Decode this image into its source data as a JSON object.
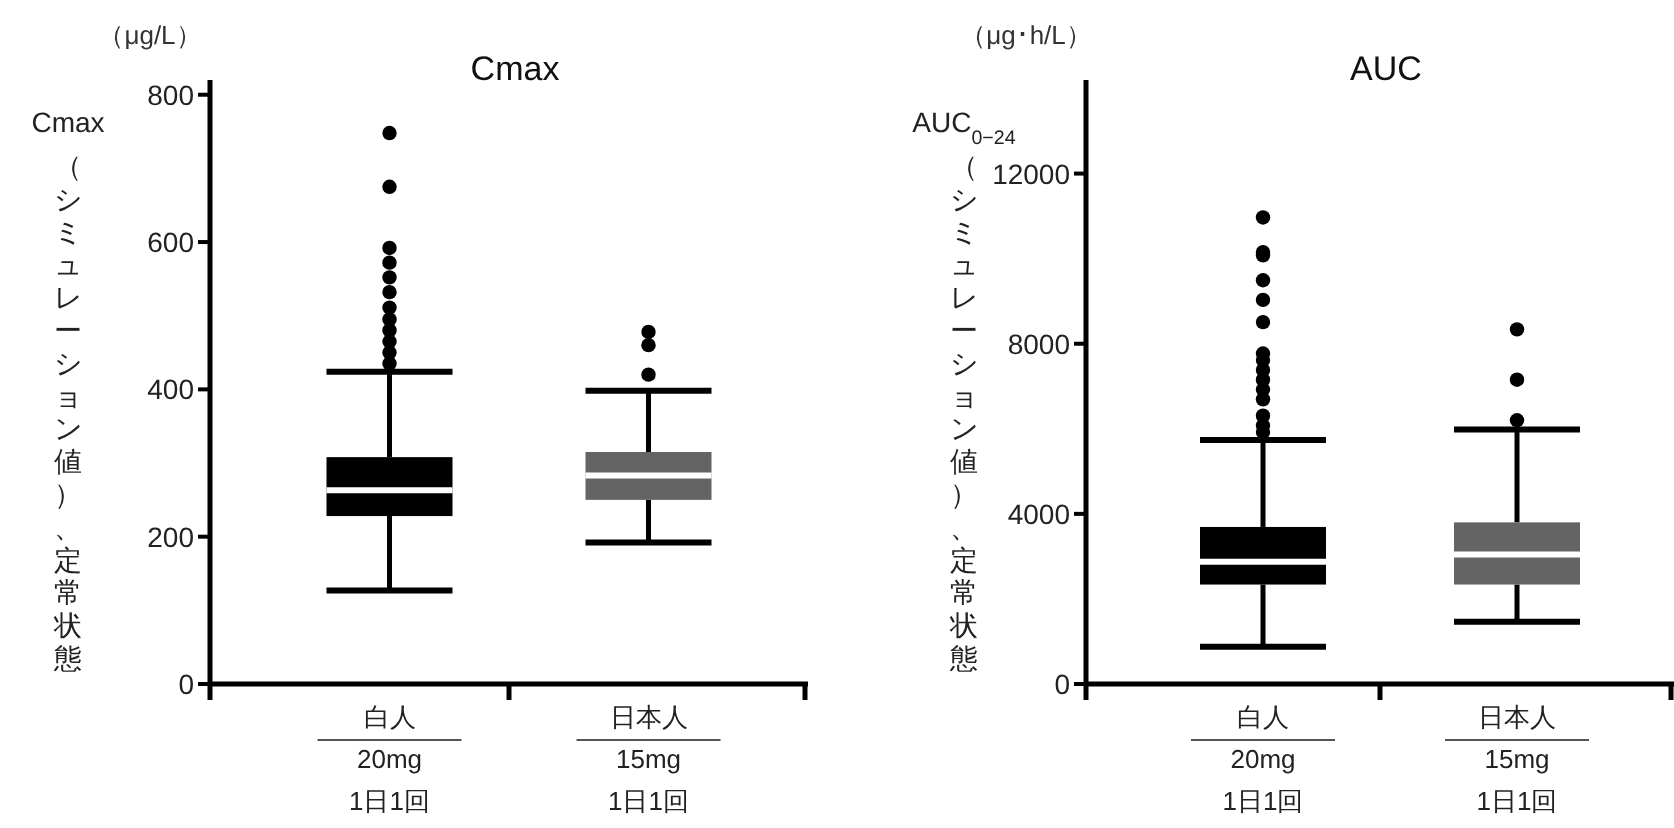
{
  "chart_data": [
    {
      "type": "box",
      "title": "Cmax",
      "ylabel": "Cmax（シミュレーション値）、定常状態",
      "annotations": [
        "（μg/L）"
      ],
      "categories": [
        "白人\n20mg\n1日1回",
        "日本人\n15mg\n1日1回"
      ],
      "colors": [
        "#000000",
        "#646464"
      ],
      "ylim": [
        0,
        820
      ],
      "yticks": [
        0,
        200,
        400,
        600,
        800
      ],
      "boxes": [
        {
          "low": 127,
          "q1": 228,
          "median": 263,
          "q3": 308,
          "high": 424,
          "outliers": [
            748,
            675,
            592,
            572,
            552,
            532,
            511,
            495,
            480,
            465,
            450,
            435
          ]
        },
        {
          "low": 192,
          "q1": 250,
          "median": 283,
          "q3": 315,
          "high": 398,
          "outliers": [
            478,
            460,
            420
          ]
        }
      ]
    },
    {
      "type": "box",
      "title": "AUC",
      "ylabel": "AUC$_{0−24}$（シミュレーション値）、定常状態",
      "annotations": [
        "（μg･h/L）"
      ],
      "categories": [
        "白人\n20mg\n1日1回",
        "日本人\n15mg\n1日1回"
      ],
      "colors": [
        "#000000",
        "#646464"
      ],
      "ylim": [
        0,
        14200
      ],
      "yticks": [
        0,
        4000,
        8000,
        12000
      ],
      "boxes": [
        {
          "low": 877,
          "q1": 2338,
          "median": 2877,
          "q3": 3692,
          "high": 5738,
          "outliers": [
            10969,
            10154,
            10077,
            9492,
            9031,
            8508,
            7769,
            7615,
            7385,
            7154,
            6923,
            6692,
            6308,
            6077,
            5923
          ]
        },
        {
          "low": 1462,
          "q1": 2338,
          "median": 3046,
          "q3": 3800,
          "high": 5985,
          "outliers": [
            8338,
            7154,
            6200
          ]
        }
      ]
    }
  ]
}
